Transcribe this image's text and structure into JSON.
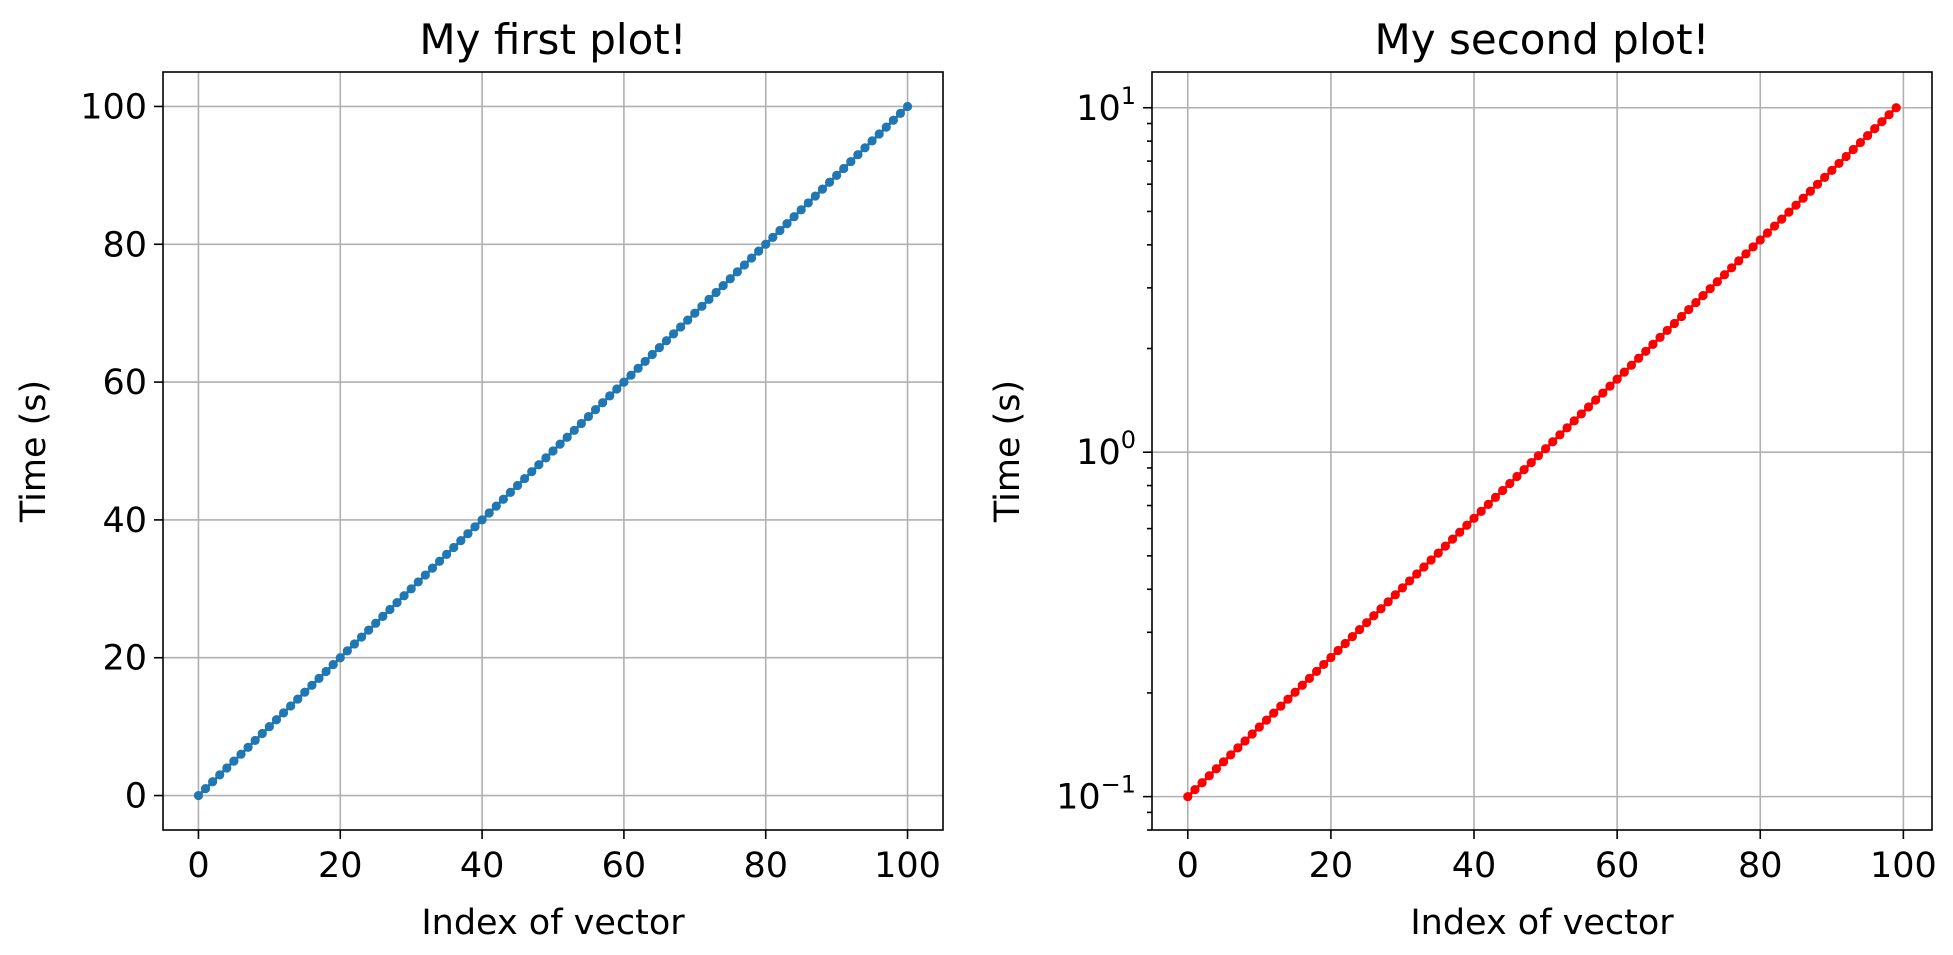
{
  "chart_data": [
    {
      "type": "line",
      "title": "My first plot!",
      "xlabel": "Index of vector",
      "ylabel": "Time (s)",
      "xlim": [
        -5,
        105
      ],
      "ylim": [
        -5,
        105
      ],
      "yscale": "linear",
      "grid": true,
      "markers": "dots",
      "xticks": [
        0,
        20,
        40,
        60,
        80,
        100
      ],
      "xtick_labels": [
        "0",
        "20",
        "40",
        "60",
        "80",
        "100"
      ],
      "yticks": [
        0,
        20,
        40,
        60,
        80,
        100
      ],
      "ytick_labels": [
        "0",
        "20",
        "40",
        "60",
        "80",
        "100"
      ],
      "series": [
        {
          "color": "#1f77b4",
          "x": [
            0,
            1,
            2,
            3,
            4,
            5,
            6,
            7,
            8,
            9,
            10,
            11,
            12,
            13,
            14,
            15,
            16,
            17,
            18,
            19,
            20,
            21,
            22,
            23,
            24,
            25,
            26,
            27,
            28,
            29,
            30,
            31,
            32,
            33,
            34,
            35,
            36,
            37,
            38,
            39,
            40,
            41,
            42,
            43,
            44,
            45,
            46,
            47,
            48,
            49,
            50,
            51,
            52,
            53,
            54,
            55,
            56,
            57,
            58,
            59,
            60,
            61,
            62,
            63,
            64,
            65,
            66,
            67,
            68,
            69,
            70,
            71,
            72,
            73,
            74,
            75,
            76,
            77,
            78,
            79,
            80,
            81,
            82,
            83,
            84,
            85,
            86,
            87,
            88,
            89,
            90,
            91,
            92,
            93,
            94,
            95,
            96,
            97,
            98,
            99,
            100
          ],
          "y": [
            0,
            1,
            2,
            3,
            4,
            5,
            6,
            7,
            8,
            9,
            10,
            11,
            12,
            13,
            14,
            15,
            16,
            17,
            18,
            19,
            20,
            21,
            22,
            23,
            24,
            25,
            26,
            27,
            28,
            29,
            30,
            31,
            32,
            33,
            34,
            35,
            36,
            37,
            38,
            39,
            40,
            41,
            42,
            43,
            44,
            45,
            46,
            47,
            48,
            49,
            50,
            51,
            52,
            53,
            54,
            55,
            56,
            57,
            58,
            59,
            60,
            61,
            62,
            63,
            64,
            65,
            66,
            67,
            68,
            69,
            70,
            71,
            72,
            73,
            74,
            75,
            76,
            77,
            78,
            79,
            80,
            81,
            82,
            83,
            84,
            85,
            86,
            87,
            88,
            89,
            90,
            91,
            92,
            93,
            94,
            95,
            96,
            97,
            98,
            99,
            100
          ]
        }
      ]
    },
    {
      "type": "line",
      "title": "My second plot!",
      "xlabel": "Index of vector",
      "ylabel": "Time (s)",
      "xlim": [
        -5,
        104
      ],
      "ylim": [
        0.08,
        12.7
      ],
      "yscale": "log",
      "grid": true,
      "markers": "dots",
      "xticks": [
        0,
        20,
        40,
        60,
        80,
        100
      ],
      "xtick_labels": [
        "0",
        "20",
        "40",
        "60",
        "80",
        "100"
      ],
      "yticks": [
        0.1,
        1,
        10
      ],
      "ytick_labels": [
        {
          "base": "10",
          "exp": "−1"
        },
        {
          "base": "10",
          "exp": "0"
        },
        {
          "base": "10",
          "exp": "1"
        }
      ],
      "series": [
        {
          "color": "#ff0000",
          "x": [
            0,
            1,
            2,
            3,
            4,
            5,
            6,
            7,
            8,
            9,
            10,
            11,
            12,
            13,
            14,
            15,
            16,
            17,
            18,
            19,
            20,
            21,
            22,
            23,
            24,
            25,
            26,
            27,
            28,
            29,
            30,
            31,
            32,
            33,
            34,
            35,
            36,
            37,
            38,
            39,
            40,
            41,
            42,
            43,
            44,
            45,
            46,
            47,
            48,
            49,
            50,
            51,
            52,
            53,
            54,
            55,
            56,
            57,
            58,
            59,
            60,
            61,
            62,
            63,
            64,
            65,
            66,
            67,
            68,
            69,
            70,
            71,
            72,
            73,
            74,
            75,
            76,
            77,
            78,
            79,
            80,
            81,
            82,
            83,
            84,
            85,
            86,
            87,
            88,
            89,
            90,
            91,
            92,
            93,
            94,
            95,
            96,
            97,
            98,
            99
          ],
          "y": [
            0.1,
            0.1048,
            0.1097,
            0.115,
            0.1205,
            0.1262,
            0.1322,
            0.1385,
            0.1451,
            0.152,
            0.1593,
            0.1668,
            0.1748,
            0.1831,
            0.1918,
            0.2009,
            0.2105,
            0.2205,
            0.231,
            0.242,
            0.2535,
            0.2656,
            0.2783,
            0.2915,
            0.3054,
            0.3199,
            0.3352,
            0.3511,
            0.3678,
            0.3854,
            0.4037,
            0.4229,
            0.4431,
            0.4642,
            0.4863,
            0.5094,
            0.5337,
            0.5591,
            0.5857,
            0.6136,
            0.6428,
            0.6734,
            0.7055,
            0.7391,
            0.7743,
            0.8111,
            0.8498,
            0.8902,
            0.9326,
            0.977,
            1.0235,
            1.0723,
            1.1233,
            1.1768,
            1.2328,
            1.2915,
            1.353,
            1.4175,
            1.485,
            1.5557,
            1.6298,
            1.7074,
            1.7886,
            1.8738,
            1.963,
            2.0565,
            2.1544,
            2.257,
            2.3645,
            2.4771,
            2.595,
            2.7186,
            2.848,
            2.9836,
            3.1257,
            3.2745,
            3.4305,
            3.5938,
            3.7649,
            3.9442,
            4.132,
            4.3288,
            4.5349,
            4.7508,
            4.977,
            5.214,
            5.4623,
            5.7224,
            5.9948,
            6.2803,
            6.5793,
            6.8926,
            7.2208,
            7.5646,
            7.9248,
            8.3022,
            8.6975,
            9.1116,
            9.5455,
            10.0
          ]
        }
      ]
    }
  ]
}
